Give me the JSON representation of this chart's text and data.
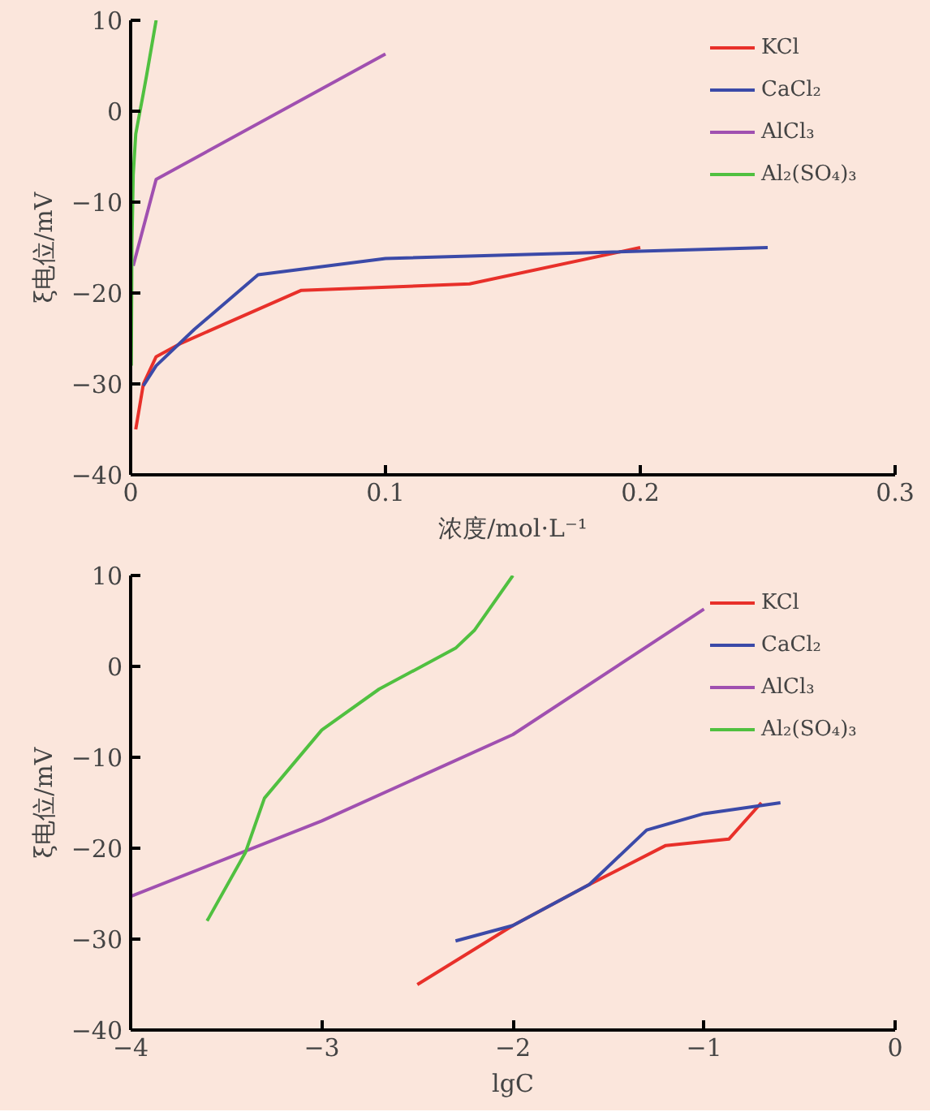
{
  "chart_data": [
    {
      "type": "line",
      "xlabel": "浓度/mol·L⁻¹",
      "ylabel": "ξ电位/mV",
      "xlim": [
        0,
        0.3
      ],
      "ylim": [
        -40,
        10
      ],
      "xticks": [
        0,
        0.1,
        0.2,
        0.3
      ],
      "yticks": [
        -40,
        -30,
        -20,
        -10,
        0,
        10
      ],
      "grid": false,
      "legend": "top right",
      "series": [
        {
          "name": "KCl",
          "color": "#e8302a",
          "x": [
            0.002,
            0.005,
            0.01,
            0.02,
            0.067,
            0.133,
            0.2
          ],
          "values": [
            -35,
            -30,
            -27,
            -25.5,
            -19.7,
            -19,
            -15
          ]
        },
        {
          "name": "CaCl₂",
          "color": "#3b4aa8",
          "x": [
            0.005,
            0.01,
            0.025,
            0.05,
            0.1,
            0.25
          ],
          "values": [
            -30.2,
            -28,
            -24,
            -18,
            -16.2,
            -15
          ]
        },
        {
          "name": "AlCl₃",
          "color": "#a050b0",
          "x": [
            0.001,
            0.01,
            0.1
          ],
          "values": [
            -17,
            -7.5,
            6.3
          ]
        },
        {
          "name": "Al₂(SO₄)₃",
          "color": "#50c040",
          "x": [
            0.00025,
            0.0004,
            0.0005,
            0.001,
            0.002,
            0.005,
            0.0063,
            0.01
          ],
          "values": [
            -28,
            -20.5,
            -14.5,
            -7,
            -2.5,
            2,
            4,
            10
          ]
        }
      ]
    },
    {
      "type": "line",
      "xlabel": "lgC",
      "ylabel": "ξ电位/mV",
      "xlim": [
        -4,
        0
      ],
      "ylim": [
        -40,
        10
      ],
      "xticks": [
        -4,
        -3,
        -2,
        -1,
        0
      ],
      "yticks": [
        -40,
        -30,
        -20,
        -10,
        0,
        10
      ],
      "grid": false,
      "legend": "top right",
      "series": [
        {
          "name": "KCl",
          "color": "#e8302a",
          "x": [
            -2.5,
            -2,
            -1.6,
            -1.2,
            -0.87,
            -0.7
          ],
          "values": [
            -35,
            -28.5,
            -24,
            -19.7,
            -19,
            -15
          ]
        },
        {
          "name": "CaCl₂",
          "color": "#3b4aa8",
          "x": [
            -2.3,
            -2,
            -1.6,
            -1.3,
            -1,
            -0.6
          ],
          "values": [
            -30.2,
            -28.5,
            -24,
            -18,
            -16.2,
            -15
          ]
        },
        {
          "name": "AlCl₃",
          "color": "#a050b0",
          "x": [
            -4,
            -3,
            -2,
            -1
          ],
          "values": [
            -25.3,
            -17,
            -7.5,
            6.3
          ]
        },
        {
          "name": "Al₂(SO₄)₃",
          "color": "#50c040",
          "x": [
            -3.6,
            -3.4,
            -3.3,
            -3,
            -2.7,
            -2.3,
            -2.2,
            -2
          ],
          "values": [
            -28,
            -20.5,
            -14.5,
            -7,
            -2.5,
            2,
            4,
            10
          ]
        }
      ]
    }
  ]
}
